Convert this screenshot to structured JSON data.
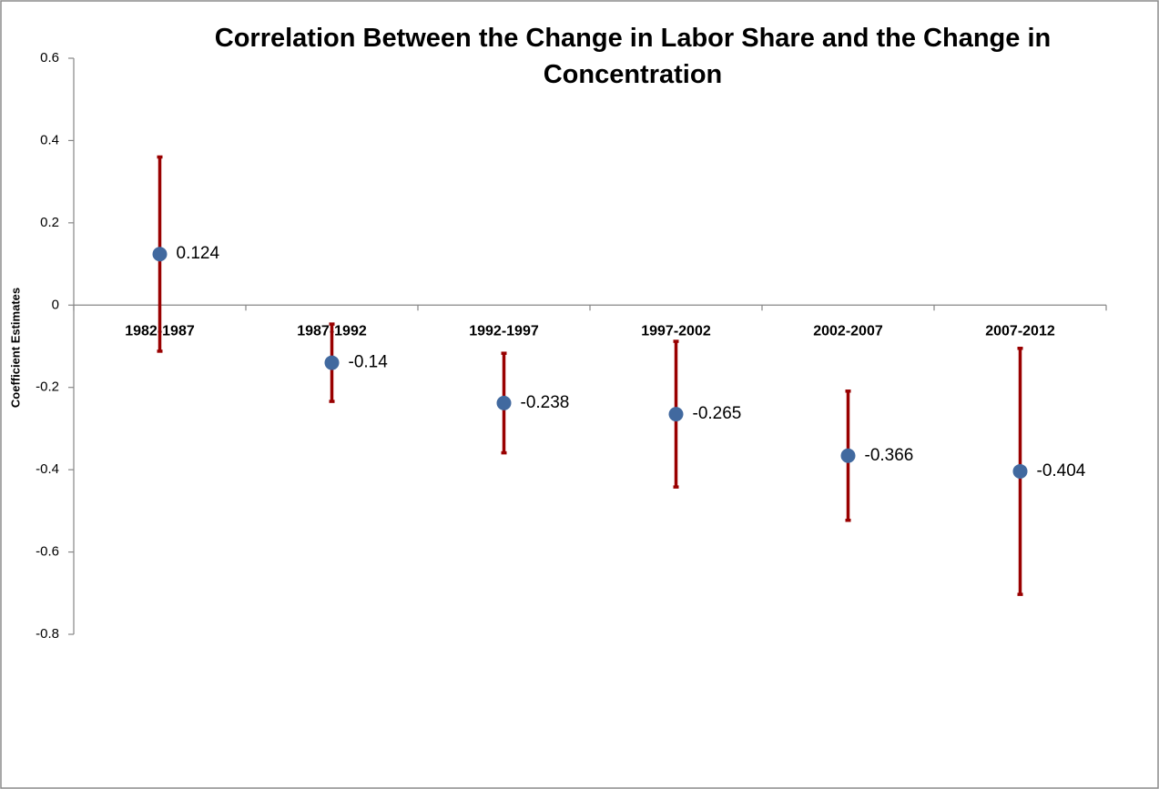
{
  "chart_data": {
    "type": "errorbar",
    "title": "Correlation Between the Change in Labor Share and the Change in Concentration",
    "y_label": "Coefficient Estimates",
    "categories": [
      "1982-1987",
      "1987-1992",
      "1992-1997",
      "1997-2002",
      "2002-2007",
      "2007-2012"
    ],
    "values": [
      0.124,
      -0.14,
      -0.238,
      -0.265,
      -0.366,
      -0.404
    ],
    "errors": [
      0.236,
      0.094,
      0.121,
      0.177,
      0.157,
      0.299
    ],
    "color": "#41699f",
    "error_color": "#990000",
    "ylim": [
      -0.8,
      0.6
    ],
    "yticks": [
      -0.8,
      -0.6,
      -0.4,
      -0.2,
      0,
      0.2,
      0.4,
      0.6
    ],
    "grid": false
  }
}
